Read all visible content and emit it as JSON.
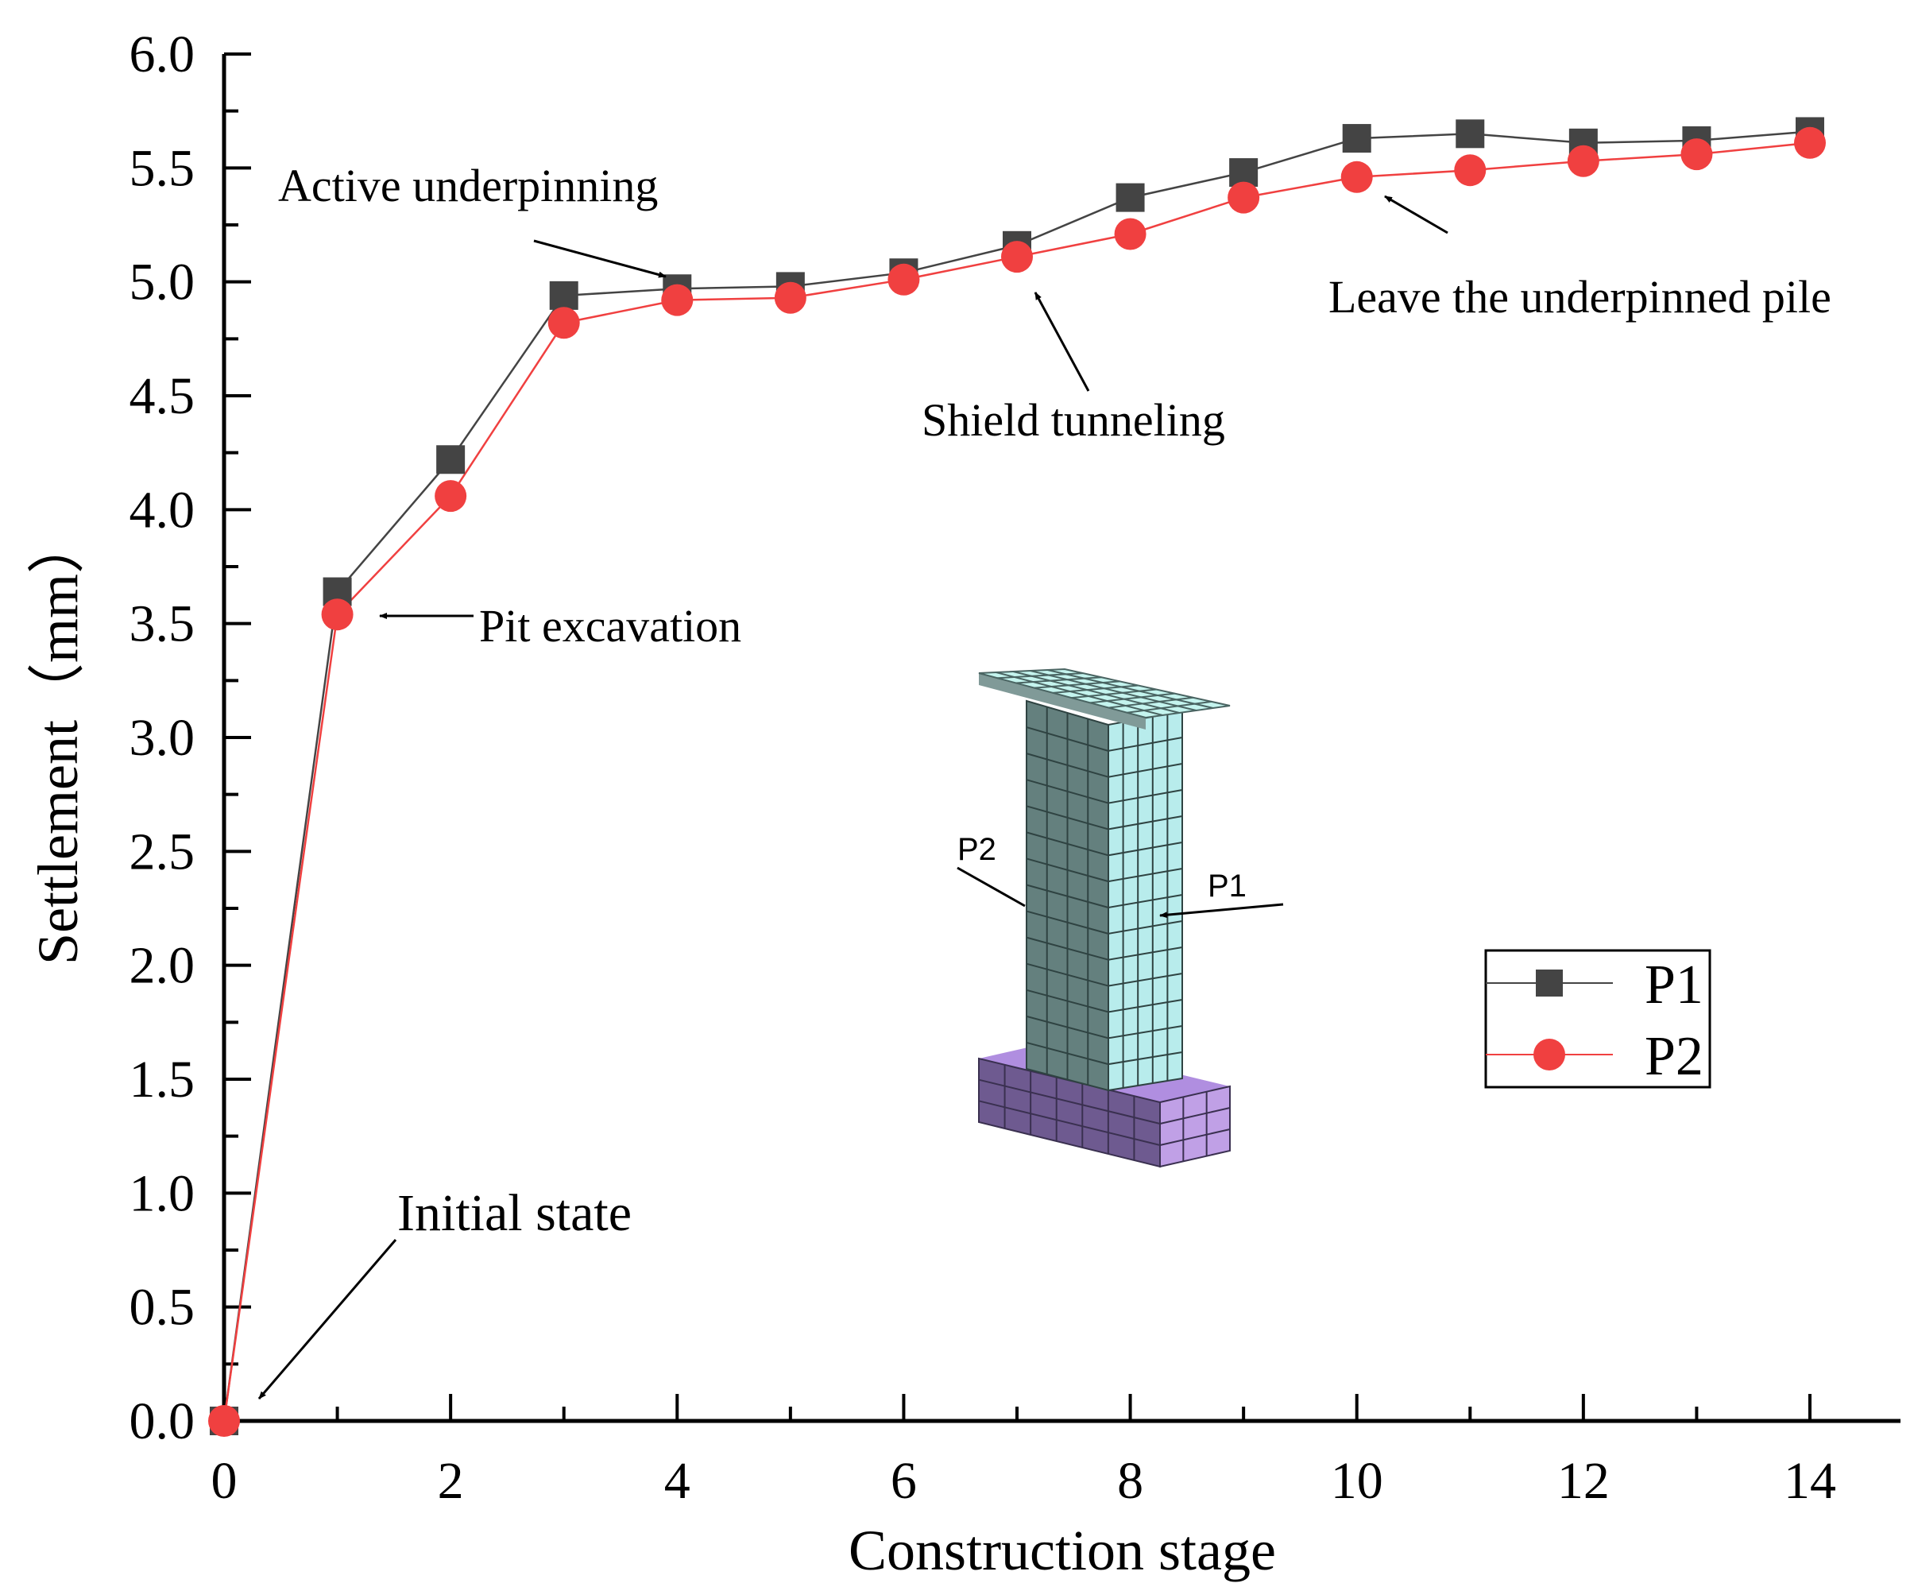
{
  "chart_data": {
    "type": "line",
    "xlabel": "Construction stage",
    "ylabel": "Settlement（mm）",
    "xlim": [
      0,
      14
    ],
    "ylim": [
      0,
      6
    ],
    "xticks": [
      0,
      2,
      4,
      6,
      8,
      10,
      12,
      14
    ],
    "yticks": [
      "0.0",
      "0.5",
      "1.0",
      "1.5",
      "2.0",
      "2.5",
      "3.0",
      "3.5",
      "4.0",
      "4.5",
      "5.0",
      "5.5",
      "6.0"
    ],
    "grid": false,
    "legend_position": "right",
    "x": [
      0,
      1,
      2,
      3,
      4,
      5,
      6,
      7,
      8,
      9,
      10,
      11,
      12,
      13,
      14
    ],
    "series": [
      {
        "name": "P1",
        "color": "#444444",
        "marker": "square",
        "values": [
          0.0,
          3.64,
          4.22,
          4.94,
          4.97,
          4.98,
          5.04,
          5.16,
          5.37,
          5.48,
          5.63,
          5.65,
          5.61,
          5.62,
          5.66
        ]
      },
      {
        "name": "P2",
        "color": "#f04040",
        "marker": "circle",
        "values": [
          0.0,
          3.54,
          4.06,
          4.82,
          4.92,
          4.93,
          5.01,
          5.11,
          5.21,
          5.37,
          5.46,
          5.49,
          5.53,
          5.56,
          5.61
        ]
      }
    ],
    "annotations": [
      {
        "text": "Active underpinning",
        "x": 4,
        "y": 4.97
      },
      {
        "text": "Pit excavation",
        "x": 1,
        "y": 3.54
      },
      {
        "text": "Shield tunneling",
        "x": 7,
        "y": 5.11
      },
      {
        "text": "Leave the underpinned pile",
        "x": 10,
        "y": 5.46
      },
      {
        "text": "Initial state",
        "x": 0,
        "y": 0.0
      }
    ],
    "inset": {
      "labels": [
        "P2",
        "P1"
      ],
      "colors": {
        "column_dark": "#64807e",
        "column_light": "#b8ecec",
        "cap": "#c4f4ee",
        "base_dark": "#6e5a90",
        "base_light": "#c0a0e6",
        "mesh": "#3a4a4a"
      }
    }
  }
}
